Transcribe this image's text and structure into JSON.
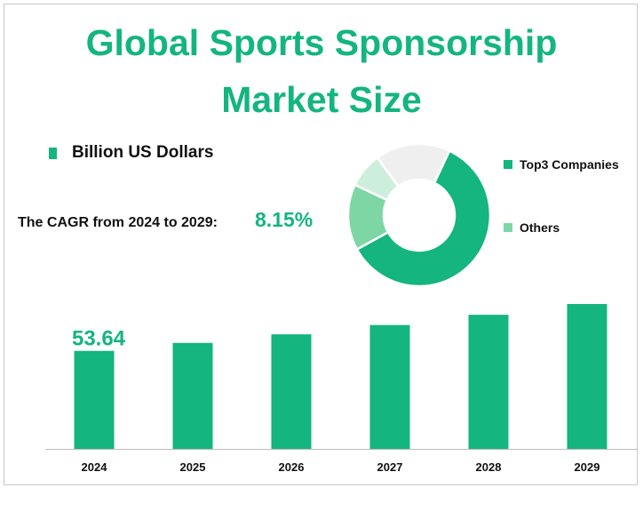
{
  "title_line1": "Global Sports Sponsorship",
  "title_line2": "Market Size",
  "unit_label": "Billion US Dollars",
  "cagr": {
    "label": "The CAGR from 2024 to 2029:",
    "value": "8.15%"
  },
  "colors": {
    "accent": "#14b57f",
    "others": "#7dd6a4",
    "light_green": "#cdeedd",
    "light_gray": "#efefef"
  },
  "donut": {
    "legend": [
      "Top3 Companies",
      "Others"
    ],
    "slices": [
      {
        "value": 60,
        "color": "#14b57f"
      },
      {
        "value": 15,
        "color": "#7dd6a4"
      },
      {
        "value": 8,
        "color": "#cdeedd"
      },
      {
        "value": 17,
        "color": "#efefef"
      }
    ]
  },
  "chart_data": {
    "type": "bar",
    "categories": [
      "2024",
      "2025",
      "2026",
      "2027",
      "2028",
      "2029"
    ],
    "values": [
      53.64,
      58.0,
      62.7,
      67.8,
      73.4,
      79.3
    ],
    "value_labels": [
      "53.64",
      "",
      "",
      "",
      "",
      ""
    ],
    "title": "Global Sports Sponsorship Market Size",
    "xlabel": "",
    "ylabel": "",
    "grid": false
  }
}
